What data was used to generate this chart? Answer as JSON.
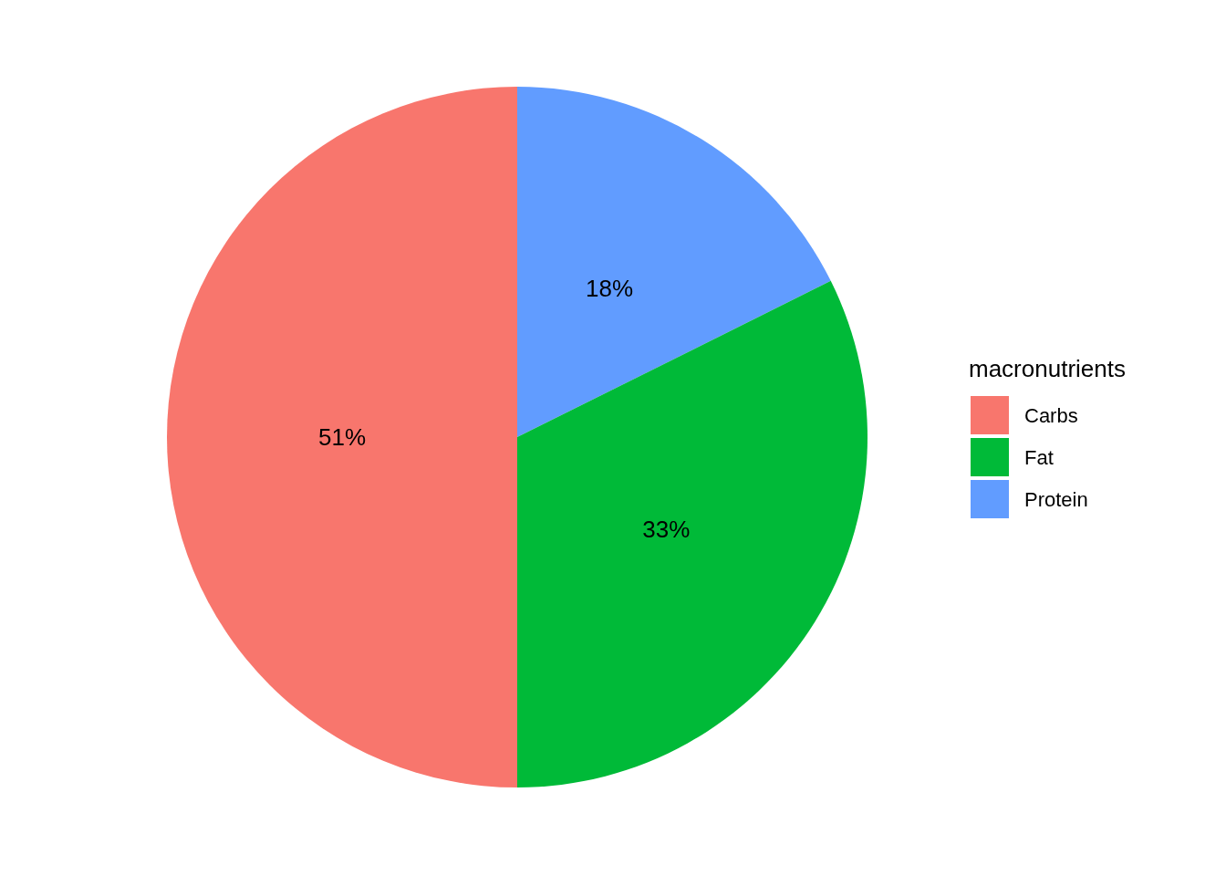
{
  "chart_data": {
    "type": "pie",
    "legend_title": "macronutrients",
    "categories": [
      "Carbs",
      "Fat",
      "Protein"
    ],
    "values": [
      51,
      33,
      18
    ],
    "colors": [
      "#f8766d",
      "#00ba38",
      "#619cff"
    ],
    "value_labels": [
      "51%",
      "33%",
      "18%"
    ],
    "legend": "right"
  }
}
